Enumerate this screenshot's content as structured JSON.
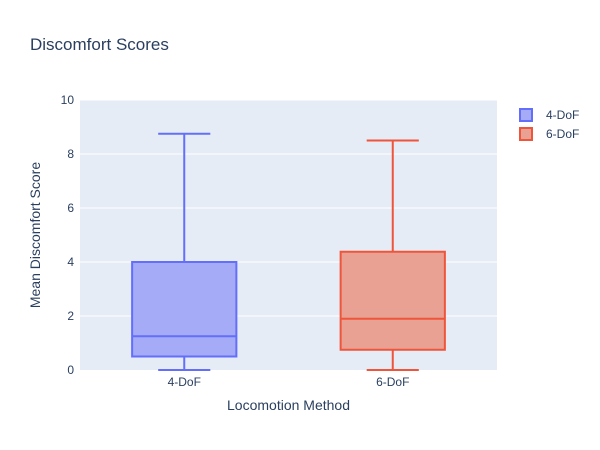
{
  "chart_data": {
    "type": "box",
    "title": "Discomfort Scores",
    "xlabel": "Locomotion Method",
    "ylabel": "Mean Discomfort Score",
    "ylim": [
      0,
      10
    ],
    "yticks": [
      0,
      2,
      4,
      6,
      8,
      10
    ],
    "categories": [
      "4-DoF",
      "6-DoF"
    ],
    "series": [
      {
        "name": "4-DoF",
        "category": "4-DoF",
        "min": 0,
        "q1": 0.5,
        "median": 1.25,
        "q3": 4.0,
        "max": 8.75,
        "color": "#636efa",
        "fill": "#a5abf7"
      },
      {
        "name": "6-DoF",
        "category": "6-DoF",
        "min": 0,
        "q1": 0.75,
        "median": 1.9,
        "q3": 4.38,
        "max": 8.5,
        "color": "#ef553b",
        "fill": "#e8a193"
      }
    ],
    "legend": "top-right",
    "grid": true
  },
  "colors": {
    "plot_bg": "#e5ecf6",
    "grid": "#ffffff",
    "text": "#2a3f5f"
  }
}
